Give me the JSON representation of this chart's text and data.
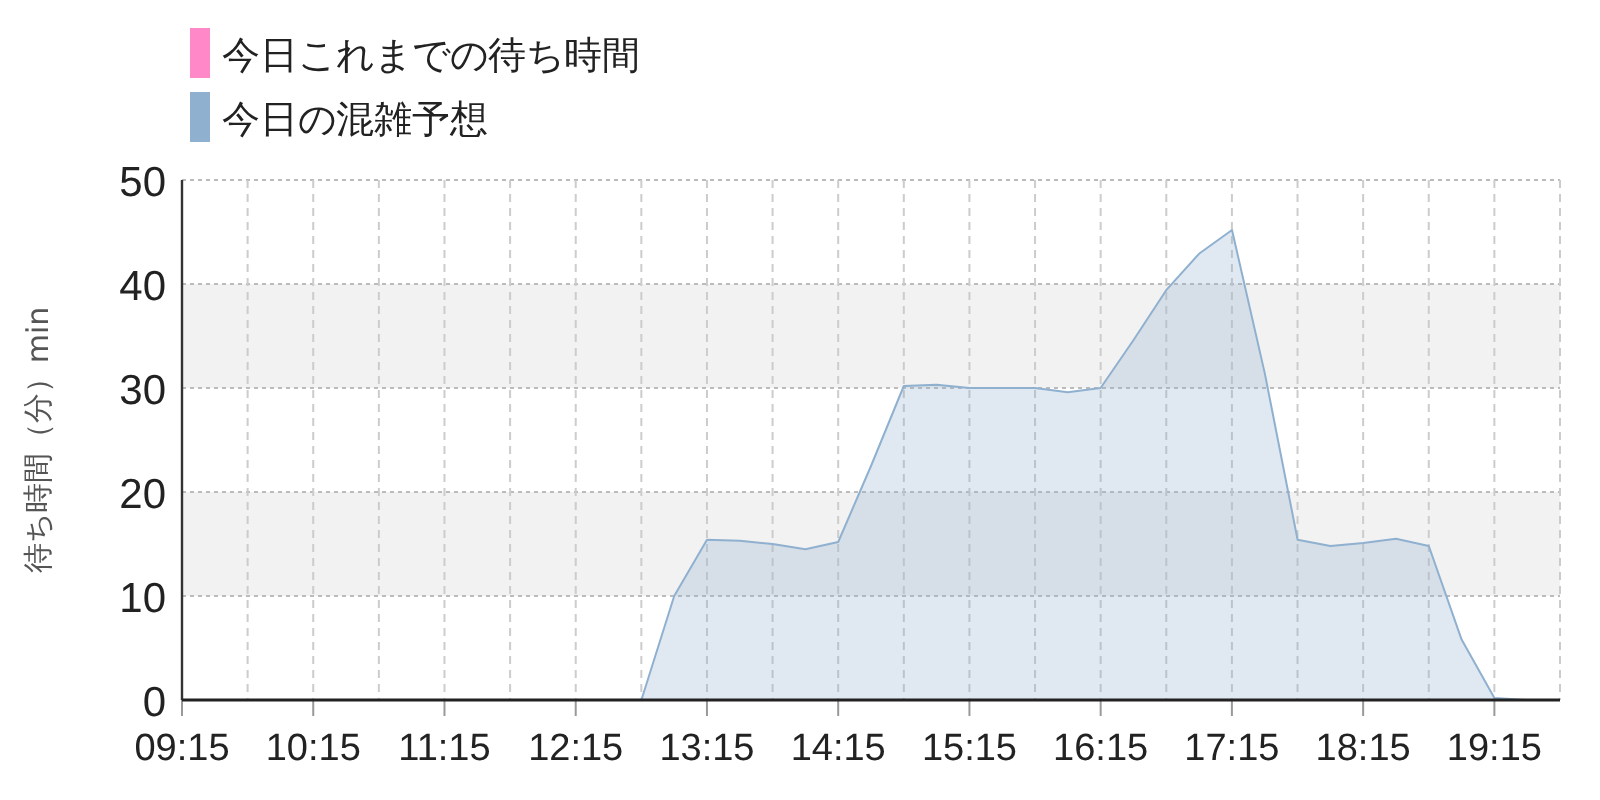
{
  "chart_data": {
    "type": "area",
    "ylabel": "待ち時間（分）min",
    "legend": "top left",
    "grid": true,
    "marker": "none",
    "xlim": [
      9.25,
      19.75
    ],
    "xticks": [
      {
        "value": 9.25,
        "label": "09:15"
      },
      {
        "value": 9.75,
        "label": null
      },
      {
        "value": 10.25,
        "label": "10:15"
      },
      {
        "value": 10.75,
        "label": null
      },
      {
        "value": 11.25,
        "label": "11:15"
      },
      {
        "value": 11.75,
        "label": null
      },
      {
        "value": 12.25,
        "label": "12:15"
      },
      {
        "value": 12.75,
        "label": null
      },
      {
        "value": 13.25,
        "label": "13:15"
      },
      {
        "value": 13.75,
        "label": null
      },
      {
        "value": 14.25,
        "label": "14:15"
      },
      {
        "value": 14.75,
        "label": null
      },
      {
        "value": 15.25,
        "label": "15:15"
      },
      {
        "value": 15.75,
        "label": null
      },
      {
        "value": 16.25,
        "label": "16:15"
      },
      {
        "value": 16.75,
        "label": null
      },
      {
        "value": 17.25,
        "label": "17:15"
      },
      {
        "value": 17.75,
        "label": null
      },
      {
        "value": 18.25,
        "label": "18:15"
      },
      {
        "value": 18.75,
        "label": null
      },
      {
        "value": 19.25,
        "label": "19:15"
      },
      {
        "value": 19.75,
        "label": null
      }
    ],
    "ylim": [
      0,
      50
    ],
    "yticks": [
      0,
      10,
      20,
      30,
      40,
      50
    ],
    "bands": [
      {
        "axis": "y",
        "from": 10,
        "to": 20,
        "color": "#f2f2f2"
      },
      {
        "axis": "y",
        "from": 30,
        "to": 40,
        "color": "#f2f2f2"
      }
    ],
    "series": [
      {
        "name": "今日これまでの待ち時間",
        "color": "#ff88c8"
      },
      {
        "name": "今日の混雑予想",
        "color": "#8fb0cf",
        "x": [
          9.25,
          10.25,
          11.25,
          12.25,
          12.5,
          12.75,
          13.0,
          13.25,
          13.5,
          13.75,
          14.0,
          14.25,
          14.5,
          14.75,
          15.0,
          15.25,
          15.5,
          15.75,
          16.0,
          16.25,
          16.5,
          16.75,
          17.0,
          17.25,
          17.5,
          17.75,
          18.0,
          18.25,
          18.5,
          18.75,
          19.0,
          19.25,
          19.5,
          19.75
        ],
        "values": [
          0,
          0,
          0,
          0,
          0,
          0,
          10,
          15.4,
          15.3,
          15.0,
          14.5,
          15.2,
          22.5,
          30.2,
          30.3,
          30,
          30,
          30,
          29.6,
          30,
          34.6,
          39.4,
          42.9,
          45.2,
          31.4,
          15.4,
          14.8,
          15.1,
          15.5,
          14.8,
          5.8,
          0.2,
          0,
          0
        ]
      }
    ]
  }
}
